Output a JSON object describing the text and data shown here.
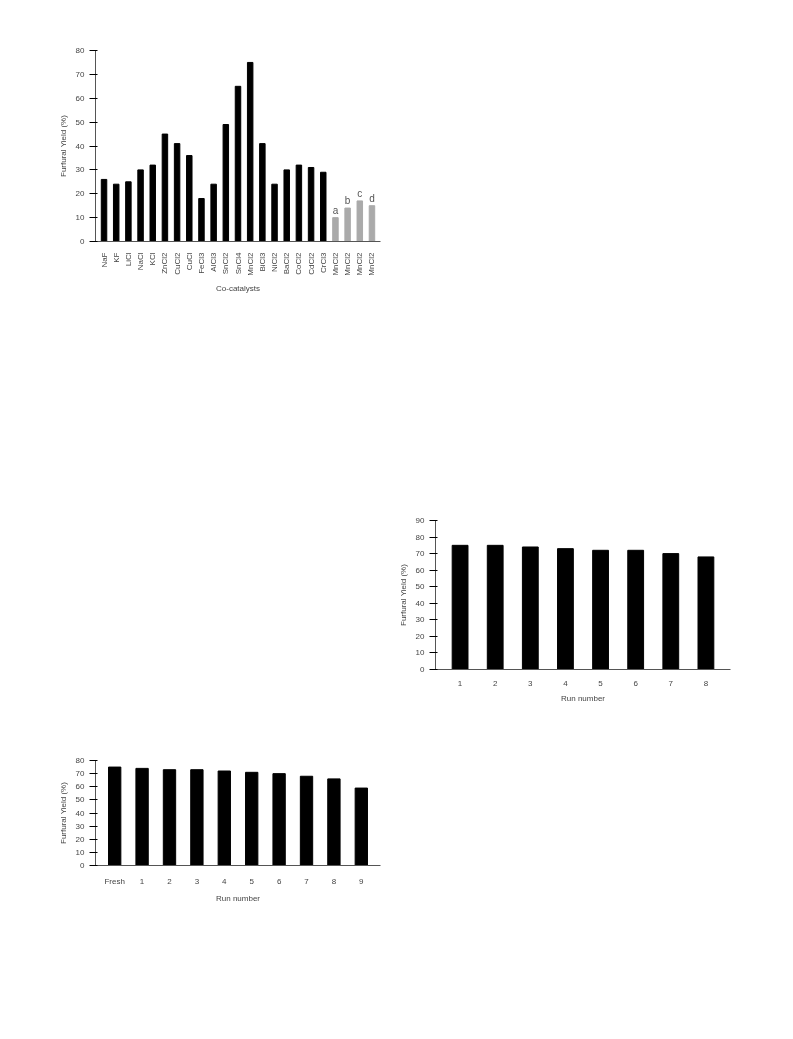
{
  "chart_data": [
    {
      "type": "bar",
      "xlabel": "Co-catalysts",
      "ylabel": "Furfural Yield (%)",
      "categories": [
        "NaF",
        "KF",
        "LiCl",
        "NaCl",
        "KCl",
        "ZnCl2",
        "CuCl2",
        "CuCl",
        "FeCl3",
        "AlCl3",
        "SnCl2",
        "SnCl4",
        "MnCl2",
        "BiCl3",
        "NiCl2",
        "BaCl2",
        "CoCl2",
        "CdCl2",
        "CrCl3",
        "MnCl2",
        "MnCl2",
        "MnCl2",
        "MnCl2"
      ],
      "values": [
        26,
        24,
        25,
        30,
        32,
        45,
        41,
        36,
        18,
        24,
        49,
        65,
        75,
        41,
        24,
        30,
        32,
        31,
        29,
        10,
        14,
        17,
        15
      ],
      "colors": [
        "#000000",
        "#000000",
        "#000000",
        "#000000",
        "#000000",
        "#000000",
        "#000000",
        "#000000",
        "#000000",
        "#000000",
        "#000000",
        "#000000",
        "#000000",
        "#000000",
        "#000000",
        "#000000",
        "#000000",
        "#000000",
        "#000000",
        "#aaaaaa",
        "#aaaaaa",
        "#aaaaaa",
        "#aaaaaa"
      ],
      "value_labels": [
        null,
        null,
        null,
        null,
        null,
        null,
        null,
        null,
        null,
        null,
        null,
        null,
        null,
        null,
        null,
        null,
        null,
        null,
        null,
        "a",
        "b",
        "c",
        "d"
      ],
      "ylim": [
        0,
        80
      ],
      "yticks": [
        0,
        10,
        20,
        30,
        40,
        50,
        60,
        70,
        80
      ],
      "grid": false
    },
    {
      "type": "bar",
      "xlabel": "Run number",
      "ylabel": "Furfural Yield (%)",
      "categories": [
        "1",
        "2",
        "3",
        "4",
        "5",
        "6",
        "7",
        "8"
      ],
      "values": [
        75,
        75,
        74,
        73,
        72,
        72,
        70,
        68
      ],
      "colors": [
        "#000000",
        "#000000",
        "#000000",
        "#000000",
        "#000000",
        "#000000",
        "#000000",
        "#000000"
      ],
      "ylim": [
        0,
        90
      ],
      "yticks": [
        0,
        10,
        20,
        30,
        40,
        50,
        60,
        70,
        80,
        90
      ],
      "grid": false
    },
    {
      "type": "bar",
      "xlabel": "Run number",
      "ylabel": "Furfural Yield (%)",
      "categories": [
        "Fresh",
        "1",
        "2",
        "3",
        "4",
        "5",
        "6",
        "7",
        "8",
        "9"
      ],
      "values": [
        75,
        74,
        73,
        73,
        72,
        71,
        70,
        68,
        66,
        59
      ],
      "colors": [
        "#000000",
        "#000000",
        "#000000",
        "#000000",
        "#000000",
        "#000000",
        "#000000",
        "#000000",
        "#000000",
        "#000000"
      ],
      "ylim": [
        0,
        80
      ],
      "yticks": [
        0,
        10,
        20,
        30,
        40,
        50,
        60,
        70,
        80
      ],
      "grid": false
    }
  ]
}
